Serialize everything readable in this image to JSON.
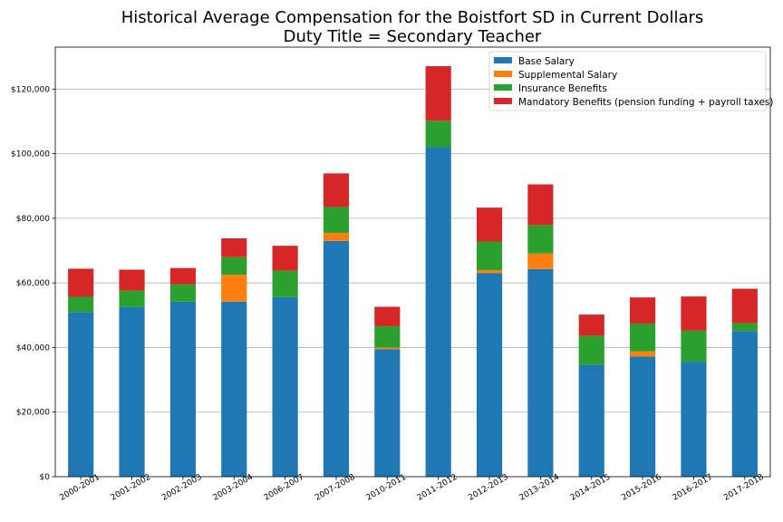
{
  "chart_data": {
    "type": "bar",
    "stacked": true,
    "title": [
      "Historical Average Compensation for the Boistfort SD in Current Dollars",
      "Duty Title = Secondary Teacher"
    ],
    "xlabel": "",
    "ylabel": "",
    "ylim": [
      0,
      133000
    ],
    "yticks": [
      0,
      20000,
      40000,
      60000,
      80000,
      100000,
      120000
    ],
    "ytick_labels": [
      "$0",
      "$20,000",
      "$40,000",
      "$60,000",
      "$80,000",
      "$100,000",
      "$120,000"
    ],
    "grid": "horizontal",
    "legend_position": "top-right",
    "categories": [
      "2000-2001",
      "2001-2002",
      "2002-2003",
      "2003-2004",
      "2006-2007",
      "2007-2008",
      "2010-2011",
      "2011-2012",
      "2012-2013",
      "2013-2014",
      "2014-2015",
      "2015-2016",
      "2016-2017",
      "2017-2018"
    ],
    "series": [
      {
        "name": "Base Salary",
        "color": "#1f77b4",
        "values": [
          51000,
          52500,
          54200,
          54200,
          55600,
          73000,
          39500,
          102000,
          63000,
          64300,
          34700,
          37200,
          35600,
          45100
        ]
      },
      {
        "name": "Supplemental Salary",
        "color": "#ff7f0e",
        "values": [
          0,
          0,
          0,
          8300,
          0,
          2500,
          500,
          0,
          900,
          4800,
          0,
          1600,
          0,
          0
        ]
      },
      {
        "name": "Insurance Benefits",
        "color": "#2ca02c",
        "values": [
          4700,
          5100,
          5400,
          5500,
          8200,
          8000,
          6600,
          8200,
          8900,
          8800,
          8900,
          8600,
          9600,
          2400
        ]
      },
      {
        "name": "Mandatory Benefits (pension funding + payroll taxes)",
        "color": "#d62728",
        "values": [
          8700,
          6500,
          5000,
          5800,
          7700,
          10400,
          6000,
          16900,
          10500,
          12600,
          6600,
          8100,
          10600,
          10700
        ]
      }
    ]
  }
}
